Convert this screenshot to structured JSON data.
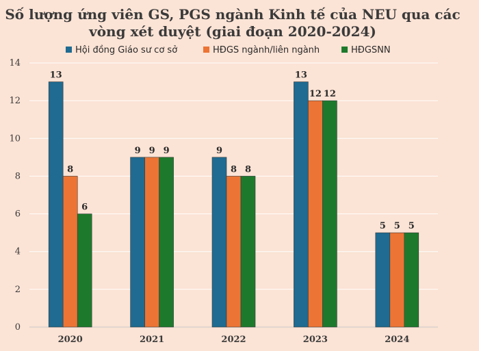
{
  "chart_data": {
    "type": "bar",
    "title_lines": [
      "Số lượng ứng viên GS, PGS ngành Kinh tế của NEU qua các",
      "vòng xét duyệt (giai đoạn 2020-2024)"
    ],
    "categories": [
      "2020",
      "2021",
      "2022",
      "2023",
      "2024"
    ],
    "series": [
      {
        "name": "Hội đồng Giáo sư cơ sở",
        "color": "#1f6b91",
        "values": [
          13,
          9,
          9,
          13,
          5
        ]
      },
      {
        "name": "HĐGS ngành/liên ngành",
        "color": "#ec7434",
        "values": [
          8,
          9,
          8,
          12,
          5
        ]
      },
      {
        "name": "HĐGSNN",
        "color": "#1d7a2c",
        "values": [
          6,
          9,
          8,
          12,
          5
        ]
      }
    ],
    "yticks": [
      "0",
      "2",
      "4",
      "6",
      "8",
      "10",
      "12",
      "14"
    ],
    "ylim": [
      0,
      14
    ],
    "grid": true,
    "legend_position": "top-left"
  }
}
